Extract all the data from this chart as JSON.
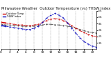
{
  "title": "Milwaukee Weather  Outdoor Temperature (vs) THSW Index per Hour (Last 24 Hours)",
  "hours": [
    0,
    1,
    2,
    3,
    4,
    5,
    6,
    7,
    8,
    9,
    10,
    11,
    12,
    13,
    14,
    15,
    16,
    17,
    18,
    19,
    20,
    21,
    22,
    23
  ],
  "temp": [
    47,
    46,
    45,
    44,
    43,
    43,
    42,
    42,
    43,
    44,
    47,
    50,
    52,
    53,
    52,
    50,
    46,
    42,
    38,
    34,
    31,
    28,
    26,
    25
  ],
  "thsw": [
    42,
    41,
    40,
    39,
    38,
    37,
    36,
    36,
    38,
    41,
    47,
    54,
    58,
    61,
    58,
    54,
    46,
    38,
    30,
    23,
    17,
    13,
    10,
    8
  ],
  "dew": [
    44,
    43,
    43,
    42,
    42,
    41,
    41,
    41,
    41,
    42,
    43,
    44,
    44,
    43,
    43,
    42,
    41,
    40,
    38,
    36,
    34,
    32,
    31,
    30
  ],
  "temp_color": "#cc0000",
  "thsw_color": "#0000bb",
  "dew_color": "#444444",
  "bg_color": "#ffffff",
  "grid_color": "#999999",
  "ylim": [
    5,
    65
  ],
  "ytick_vals": [
    15,
    25,
    35,
    45,
    55,
    65
  ],
  "ytick_labels": [
    "15",
    "25",
    "35",
    "45",
    "55",
    "65"
  ],
  "xtick_vals": [
    0,
    2,
    4,
    6,
    8,
    10,
    12,
    14,
    16,
    18,
    20,
    22
  ],
  "xtick_labels": [
    "0",
    "2",
    "4",
    "6",
    "8",
    "10",
    "12",
    "14",
    "16",
    "18",
    "20",
    "22"
  ],
  "title_fontsize": 3.8,
  "tick_fontsize": 3.2,
  "legend_labels": [
    "Outdoor Temp",
    "THSW Index"
  ],
  "legend_colors": [
    "#cc0000",
    "#0000bb"
  ]
}
